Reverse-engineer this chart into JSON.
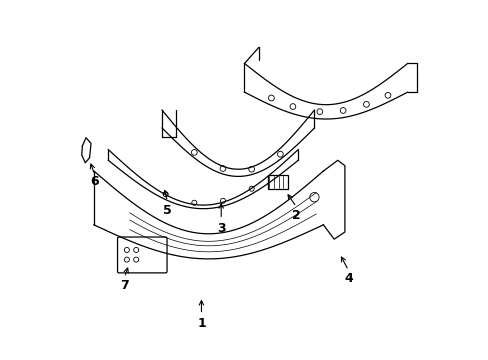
{
  "bg_color": "#ffffff",
  "line_color": "#000000",
  "fig_width": 4.89,
  "fig_height": 3.6,
  "dpi": 100,
  "parts": {
    "1": {
      "lpos": [
        0.38,
        0.1
      ],
      "astart": [
        0.38,
        0.125
      ],
      "aend": [
        0.38,
        0.175
      ]
    },
    "2": {
      "lpos": [
        0.645,
        0.4
      ],
      "astart": [
        0.645,
        0.425
      ],
      "aend": [
        0.615,
        0.468
      ]
    },
    "3": {
      "lpos": [
        0.435,
        0.365
      ],
      "astart": [
        0.435,
        0.39
      ],
      "aend": [
        0.435,
        0.445
      ]
    },
    "4": {
      "lpos": [
        0.79,
        0.225
      ],
      "astart": [
        0.79,
        0.248
      ],
      "aend": [
        0.765,
        0.295
      ]
    },
    "5": {
      "lpos": [
        0.285,
        0.415
      ],
      "astart": [
        0.285,
        0.44
      ],
      "aend": [
        0.275,
        0.482
      ]
    },
    "6": {
      "lpos": [
        0.082,
        0.495
      ],
      "astart": [
        0.082,
        0.515
      ],
      "aend": [
        0.068,
        0.555
      ]
    },
    "7": {
      "lpos": [
        0.165,
        0.205
      ],
      "astart": [
        0.165,
        0.228
      ],
      "aend": [
        0.178,
        0.265
      ]
    }
  }
}
